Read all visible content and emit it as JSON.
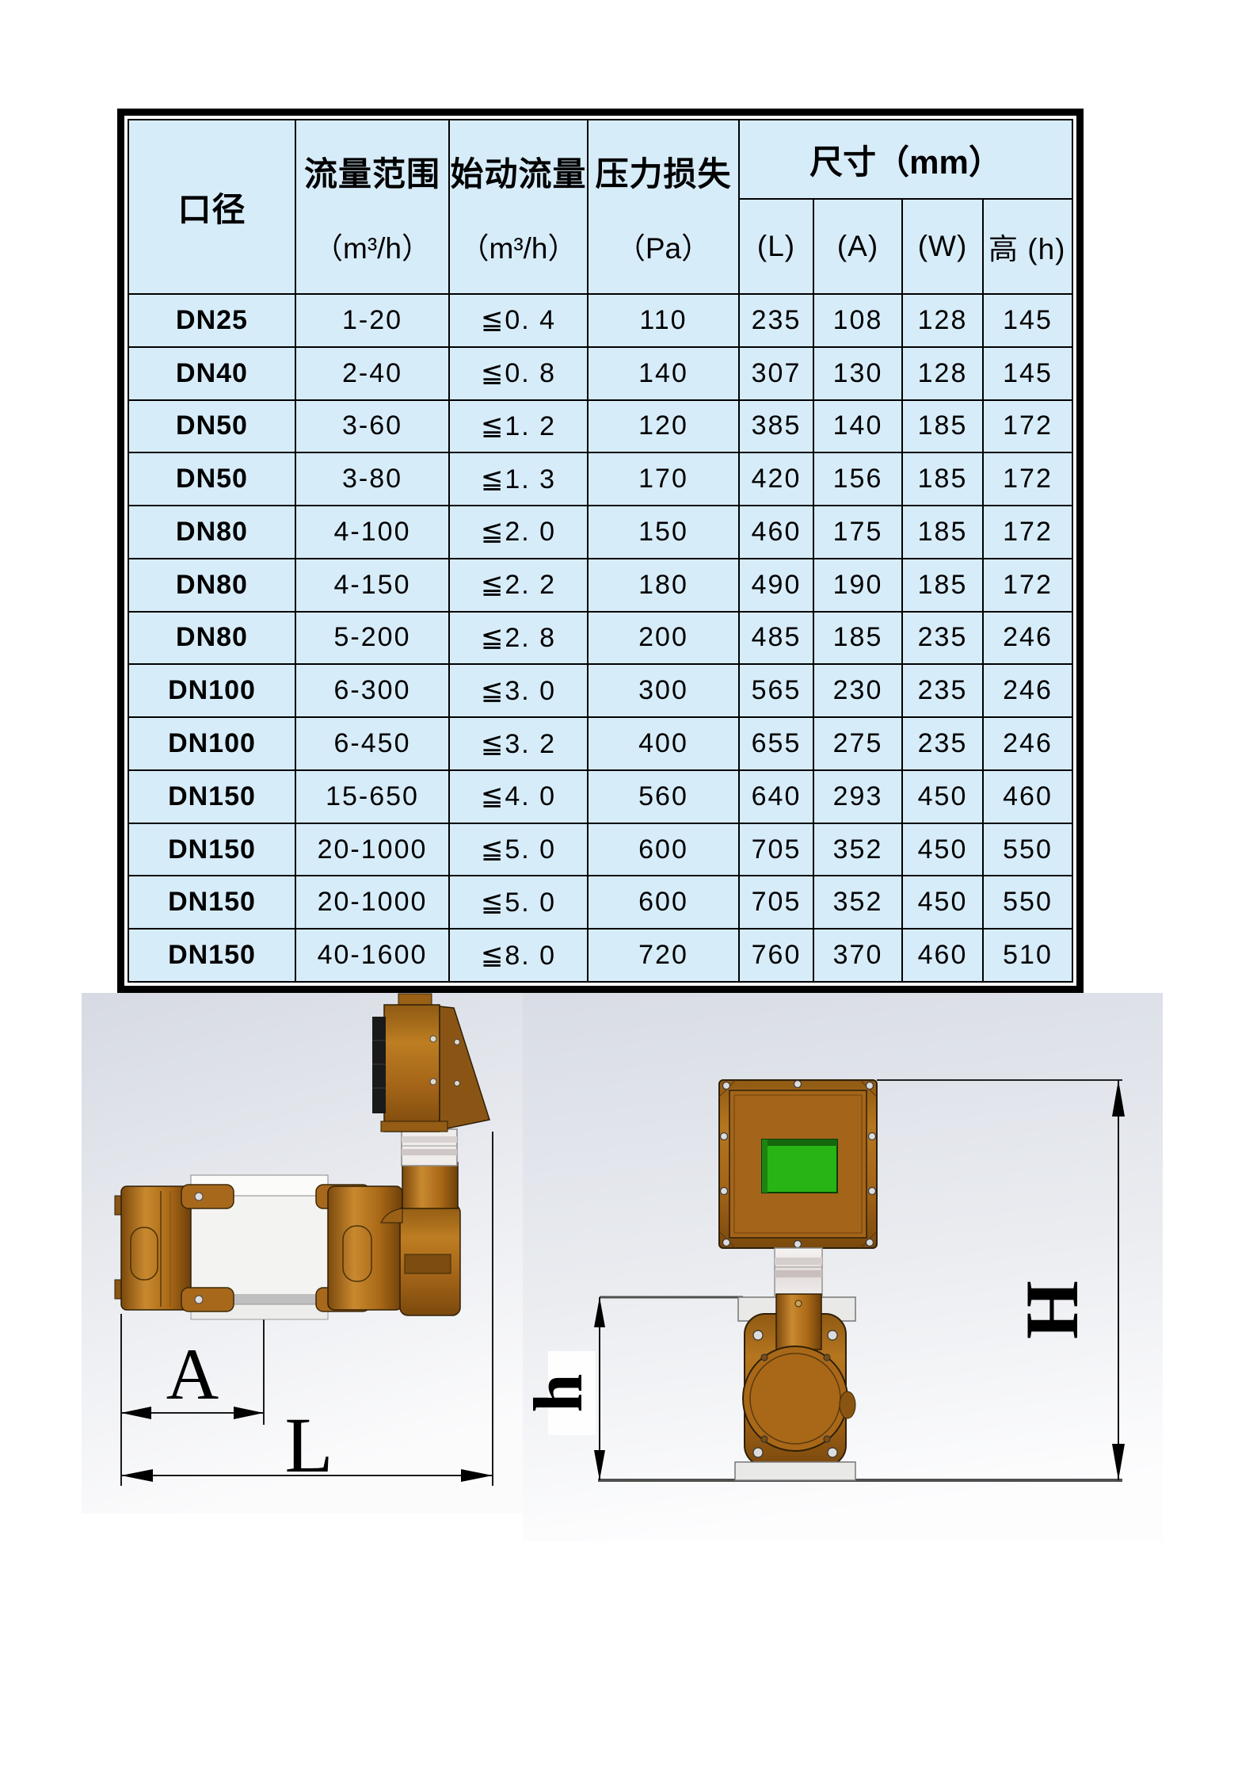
{
  "table": {
    "headers": {
      "diameter": "口径",
      "flow_range": {
        "title": "流量范围",
        "unit": "（m³/h）"
      },
      "start_flow": {
        "title": "始动流量",
        "unit": "（m³/h）"
      },
      "pressure_loss": {
        "title": "压力损失",
        "unit": "（Pa）"
      },
      "dimensions": {
        "title": "尺寸（mm）",
        "sub": [
          "(L)",
          "(A)",
          "(W)",
          "高 (h)"
        ]
      }
    },
    "rows": [
      [
        "DN25",
        "1-20",
        "≦0. 4",
        "110",
        "235",
        "108",
        "128",
        "145"
      ],
      [
        "DN40",
        "2-40",
        "≦0. 8",
        "140",
        "307",
        "130",
        "128",
        "145"
      ],
      [
        "DN50",
        "3-60",
        "≦1. 2",
        "120",
        "385",
        "140",
        "185",
        "172"
      ],
      [
        "DN50",
        "3-80",
        "≦1. 3",
        "170",
        "420",
        "156",
        "185",
        "172"
      ],
      [
        "DN80",
        "4-100",
        "≦2. 0",
        "150",
        "460",
        "175",
        "185",
        "172"
      ],
      [
        "DN80",
        "4-150",
        "≦2. 2",
        "180",
        "490",
        "190",
        "185",
        "172"
      ],
      [
        "DN80",
        "5-200",
        "≦2. 8",
        "200",
        "485",
        "185",
        "235",
        "246"
      ],
      [
        "DN100",
        "6-300",
        "≦3. 0",
        "300",
        "565",
        "230",
        "235",
        "246"
      ],
      [
        "DN100",
        "6-450",
        "≦3. 2",
        "400",
        "655",
        "275",
        "235",
        "246"
      ],
      [
        "DN150",
        "15-650",
        "≦4. 0",
        "560",
        "640",
        "293",
        "450",
        "460"
      ],
      [
        "DN150",
        "20-1000",
        "≦5. 0",
        "600",
        "705",
        "352",
        "450",
        "550"
      ],
      [
        "DN150",
        "20-1000",
        "≦5. 0",
        "600",
        "705",
        "352",
        "450",
        "550"
      ],
      [
        "DN150",
        "40-1600",
        "≦8. 0",
        "720",
        "760",
        "370",
        "460",
        "510"
      ]
    ]
  },
  "drawings": {
    "side_view": {
      "dim_a": "A",
      "dim_l": "L"
    },
    "front_view": {
      "dim_h": "h",
      "dim_H": "H"
    }
  },
  "colors": {
    "table_cell_bg": "#d7ecf9",
    "table_border": "#000000",
    "brass_body": "#a36418",
    "screen_green": "#29b415",
    "drawing_bg_top": "#d6dae3"
  }
}
